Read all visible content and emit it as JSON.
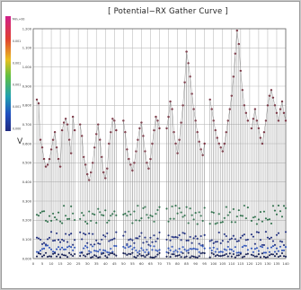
{
  "chart_data": {
    "type": "line",
    "title": "[ Potential−RX Gather Curve ]",
    "ylabel": "V",
    "xlim": [
      0,
      140
    ],
    "ylim": [
      0,
      1.2
    ],
    "x_ticks": [
      0,
      5,
      10,
      15,
      20,
      25,
      30,
      35,
      40,
      45,
      50,
      55,
      60,
      65,
      70,
      75,
      80,
      85,
      90,
      95,
      100,
      105,
      110,
      115,
      120,
      125,
      130,
      135,
      140
    ],
    "y_ticks": [
      {
        "value": 0,
        "label": "0.000"
      },
      {
        "value": 0.1,
        "label": "0.100"
      },
      {
        "value": 0.2,
        "label": "0.200"
      },
      {
        "value": 0.3,
        "label": "0.300"
      },
      {
        "value": 0.4,
        "label": "0.400"
      },
      {
        "value": 0.5,
        "label": "0.500"
      },
      {
        "value": 0.6,
        "label": "0.600"
      },
      {
        "value": 0.7,
        "label": "0.700"
      },
      {
        "value": 0.8,
        "label": "0.800"
      },
      {
        "value": 0.9,
        "label": "0.900"
      },
      {
        "value": 1.0,
        "label": "1.000"
      },
      {
        "value": 1.1,
        "label": "1.100"
      },
      {
        "value": 1.2,
        "label": "1.200"
      }
    ],
    "grid": true,
    "colorbar": {
      "position": "left",
      "ticks": [
        "Min.+00",
        "0.001",
        "0.001",
        "0.001",
        "0.001",
        "0.000"
      ]
    },
    "groups": [
      {
        "x_start": 2,
        "x_end": 23,
        "peaks": [
          0.83,
          0.81,
          0.62,
          0.58,
          0.52,
          0.48,
          0.49,
          0.52,
          0.57,
          0.62,
          0.66,
          0.58,
          0.52,
          0.48,
          0.67,
          0.71,
          0.73,
          0.7,
          0.62,
          0.55,
          0.74,
          0.67
        ]
      },
      {
        "x_start": 26,
        "x_end": 46,
        "peaks": [
          0.7,
          0.64,
          0.53,
          0.49,
          0.44,
          0.41,
          0.45,
          0.5,
          0.58,
          0.65,
          0.7,
          0.62,
          0.53,
          0.45,
          0.42,
          0.47,
          0.6,
          0.66,
          0.73,
          0.72,
          0.67
        ]
      },
      {
        "x_start": 50,
        "x_end": 70,
        "peaks": [
          0.72,
          0.66,
          0.57,
          0.52,
          0.49,
          0.46,
          0.5,
          0.56,
          0.62,
          0.68,
          0.71,
          0.64,
          0.56,
          0.5,
          0.47,
          0.52,
          0.6,
          0.67,
          0.74,
          0.72,
          0.68
        ]
      },
      {
        "x_start": 74,
        "x_end": 95,
        "peaks": [
          0.68,
          0.74,
          0.82,
          0.78,
          0.66,
          0.6,
          0.55,
          0.62,
          0.71,
          0.8,
          0.92,
          1.08,
          1.02,
          0.95,
          0.86,
          0.78,
          0.72,
          0.66,
          0.61,
          0.57,
          0.54,
          0.6
        ]
      },
      {
        "x_start": 98,
        "x_end": 119,
        "peaks": [
          0.83,
          0.78,
          0.72,
          0.67,
          0.63,
          0.6,
          0.58,
          0.56,
          0.6,
          0.66,
          0.72,
          0.78,
          0.85,
          0.95,
          1.07,
          1.19,
          1.12,
          0.98,
          0.88,
          0.8,
          0.76,
          0.72
        ]
      },
      {
        "x_start": 121,
        "x_end": 140,
        "peaks": [
          0.68,
          0.73,
          0.78,
          0.72,
          0.68,
          0.63,
          0.6,
          0.66,
          0.72,
          0.8,
          0.85,
          0.88,
          0.84,
          0.8,
          0.76,
          0.72,
          0.78,
          0.82,
          0.76,
          0.72
        ]
      }
    ],
    "low_bands": [
      {
        "name": "green",
        "color": "#2e6e4a",
        "range": [
          0.18,
          0.28
        ]
      },
      {
        "name": "navy",
        "color": "#1b2a7a",
        "range": [
          0.07,
          0.14
        ]
      },
      {
        "name": "blue",
        "color": "#2a4fb5",
        "range": [
          0.03,
          0.07
        ]
      },
      {
        "name": "dark",
        "color": "#101a50",
        "range": [
          0.005,
          0.03
        ]
      }
    ],
    "peak_color": "#7a3140",
    "line_color": "#8a8a8a"
  }
}
